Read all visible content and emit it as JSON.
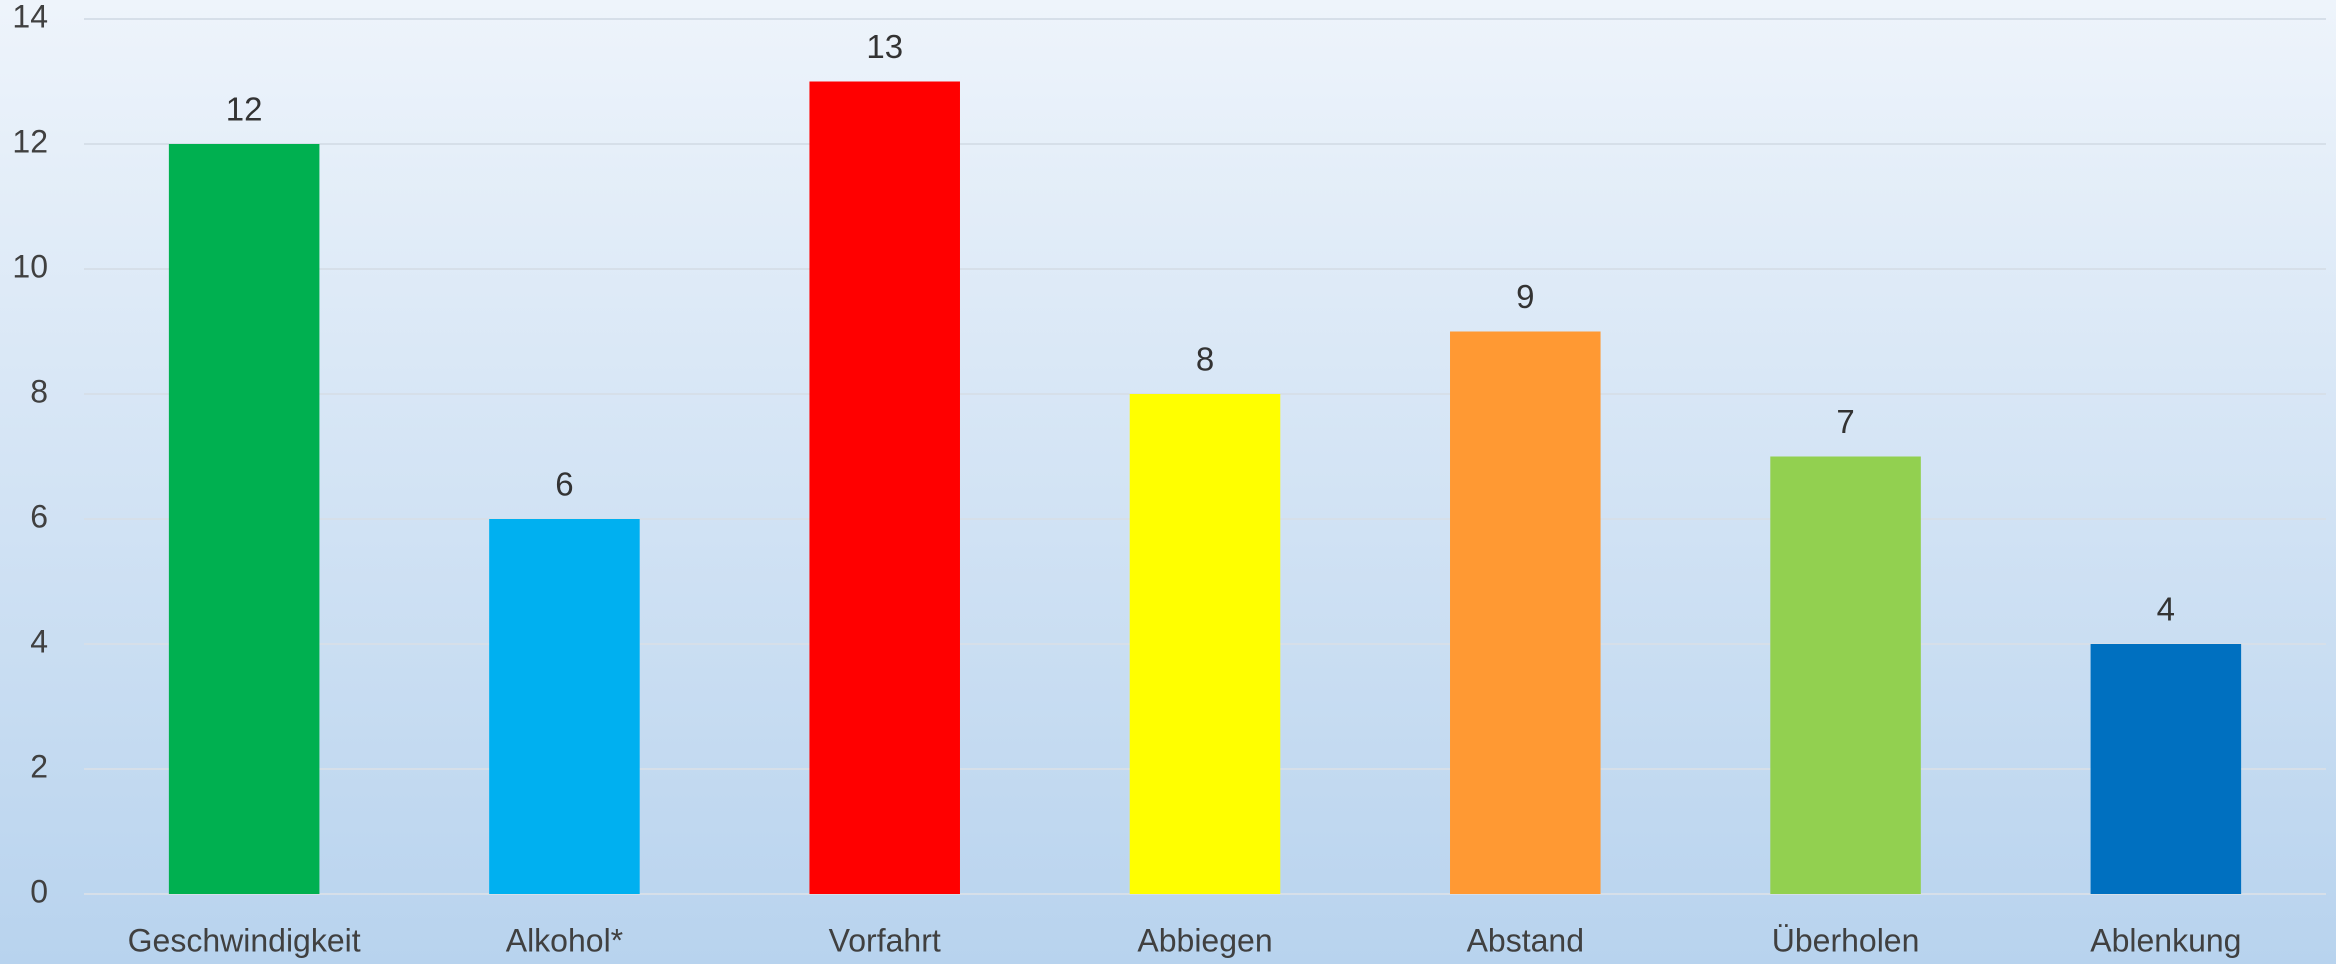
{
  "chart_data": {
    "type": "bar",
    "categories": [
      "Geschwindigkeit",
      "Alkohol*",
      "Vorfahrt",
      "Abbiegen",
      "Abstand",
      "Überholen",
      "Ablenkung"
    ],
    "values": [
      12,
      6,
      13,
      8,
      9,
      7,
      4
    ],
    "colors": [
      "#00b050",
      "#00b0f0",
      "#ff0000",
      "#ffff00",
      "#ff9933",
      "#92d050",
      "#0070c0"
    ],
    "ylim": [
      0,
      14
    ],
    "yticks": [
      0,
      2,
      4,
      6,
      8,
      10,
      12,
      14
    ],
    "grid": true
  }
}
